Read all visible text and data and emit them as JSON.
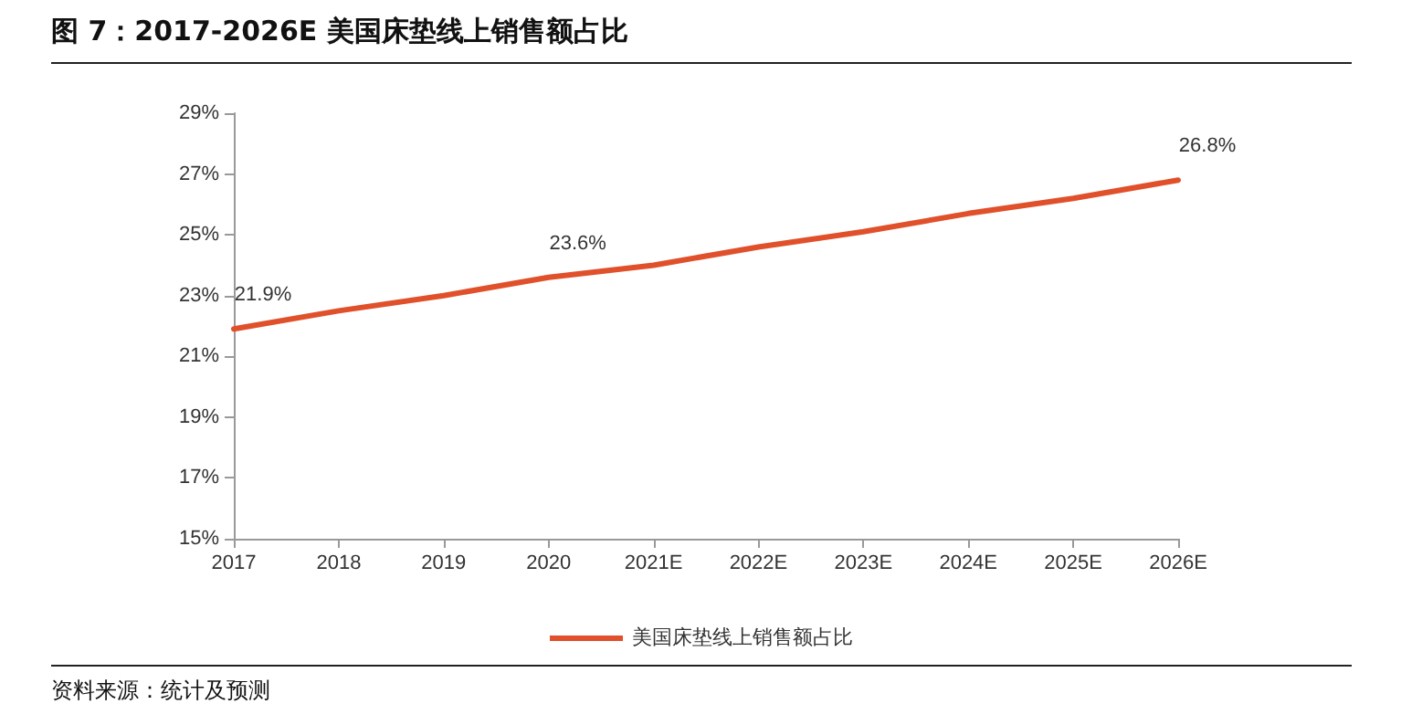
{
  "chart_data": {
    "type": "line",
    "title": "图 7：2017-2026E 美国床垫线上销售额占比",
    "categories": [
      "2017",
      "2018",
      "2019",
      "2020",
      "2021E",
      "2022E",
      "2023E",
      "2024E",
      "2025E",
      "2026E"
    ],
    "series": [
      {
        "name": "美国床垫线上销售额占比",
        "color": "#e0502a",
        "values": [
          21.9,
          22.5,
          23.0,
          23.6,
          24.0,
          24.6,
          25.1,
          25.7,
          26.2,
          26.8
        ],
        "value_labels": [
          "21.9%",
          null,
          null,
          "23.6%",
          null,
          null,
          null,
          null,
          null,
          "26.8%"
        ]
      }
    ],
    "ylim": [
      15,
      29
    ],
    "yticks": [
      {
        "value": 15,
        "label": "15%"
      },
      {
        "value": 17,
        "label": "17%"
      },
      {
        "value": 19,
        "label": "19%"
      },
      {
        "value": 21,
        "label": "21%"
      },
      {
        "value": 23,
        "label": "23%"
      },
      {
        "value": 25,
        "label": "25%"
      },
      {
        "value": 27,
        "label": "27%"
      },
      {
        "value": 29,
        "label": "29%"
      }
    ],
    "grid": false,
    "legend": "bottom",
    "marker": "none",
    "line_style": "solid",
    "annotations": [
      "资料来源：统计及预测"
    ]
  }
}
